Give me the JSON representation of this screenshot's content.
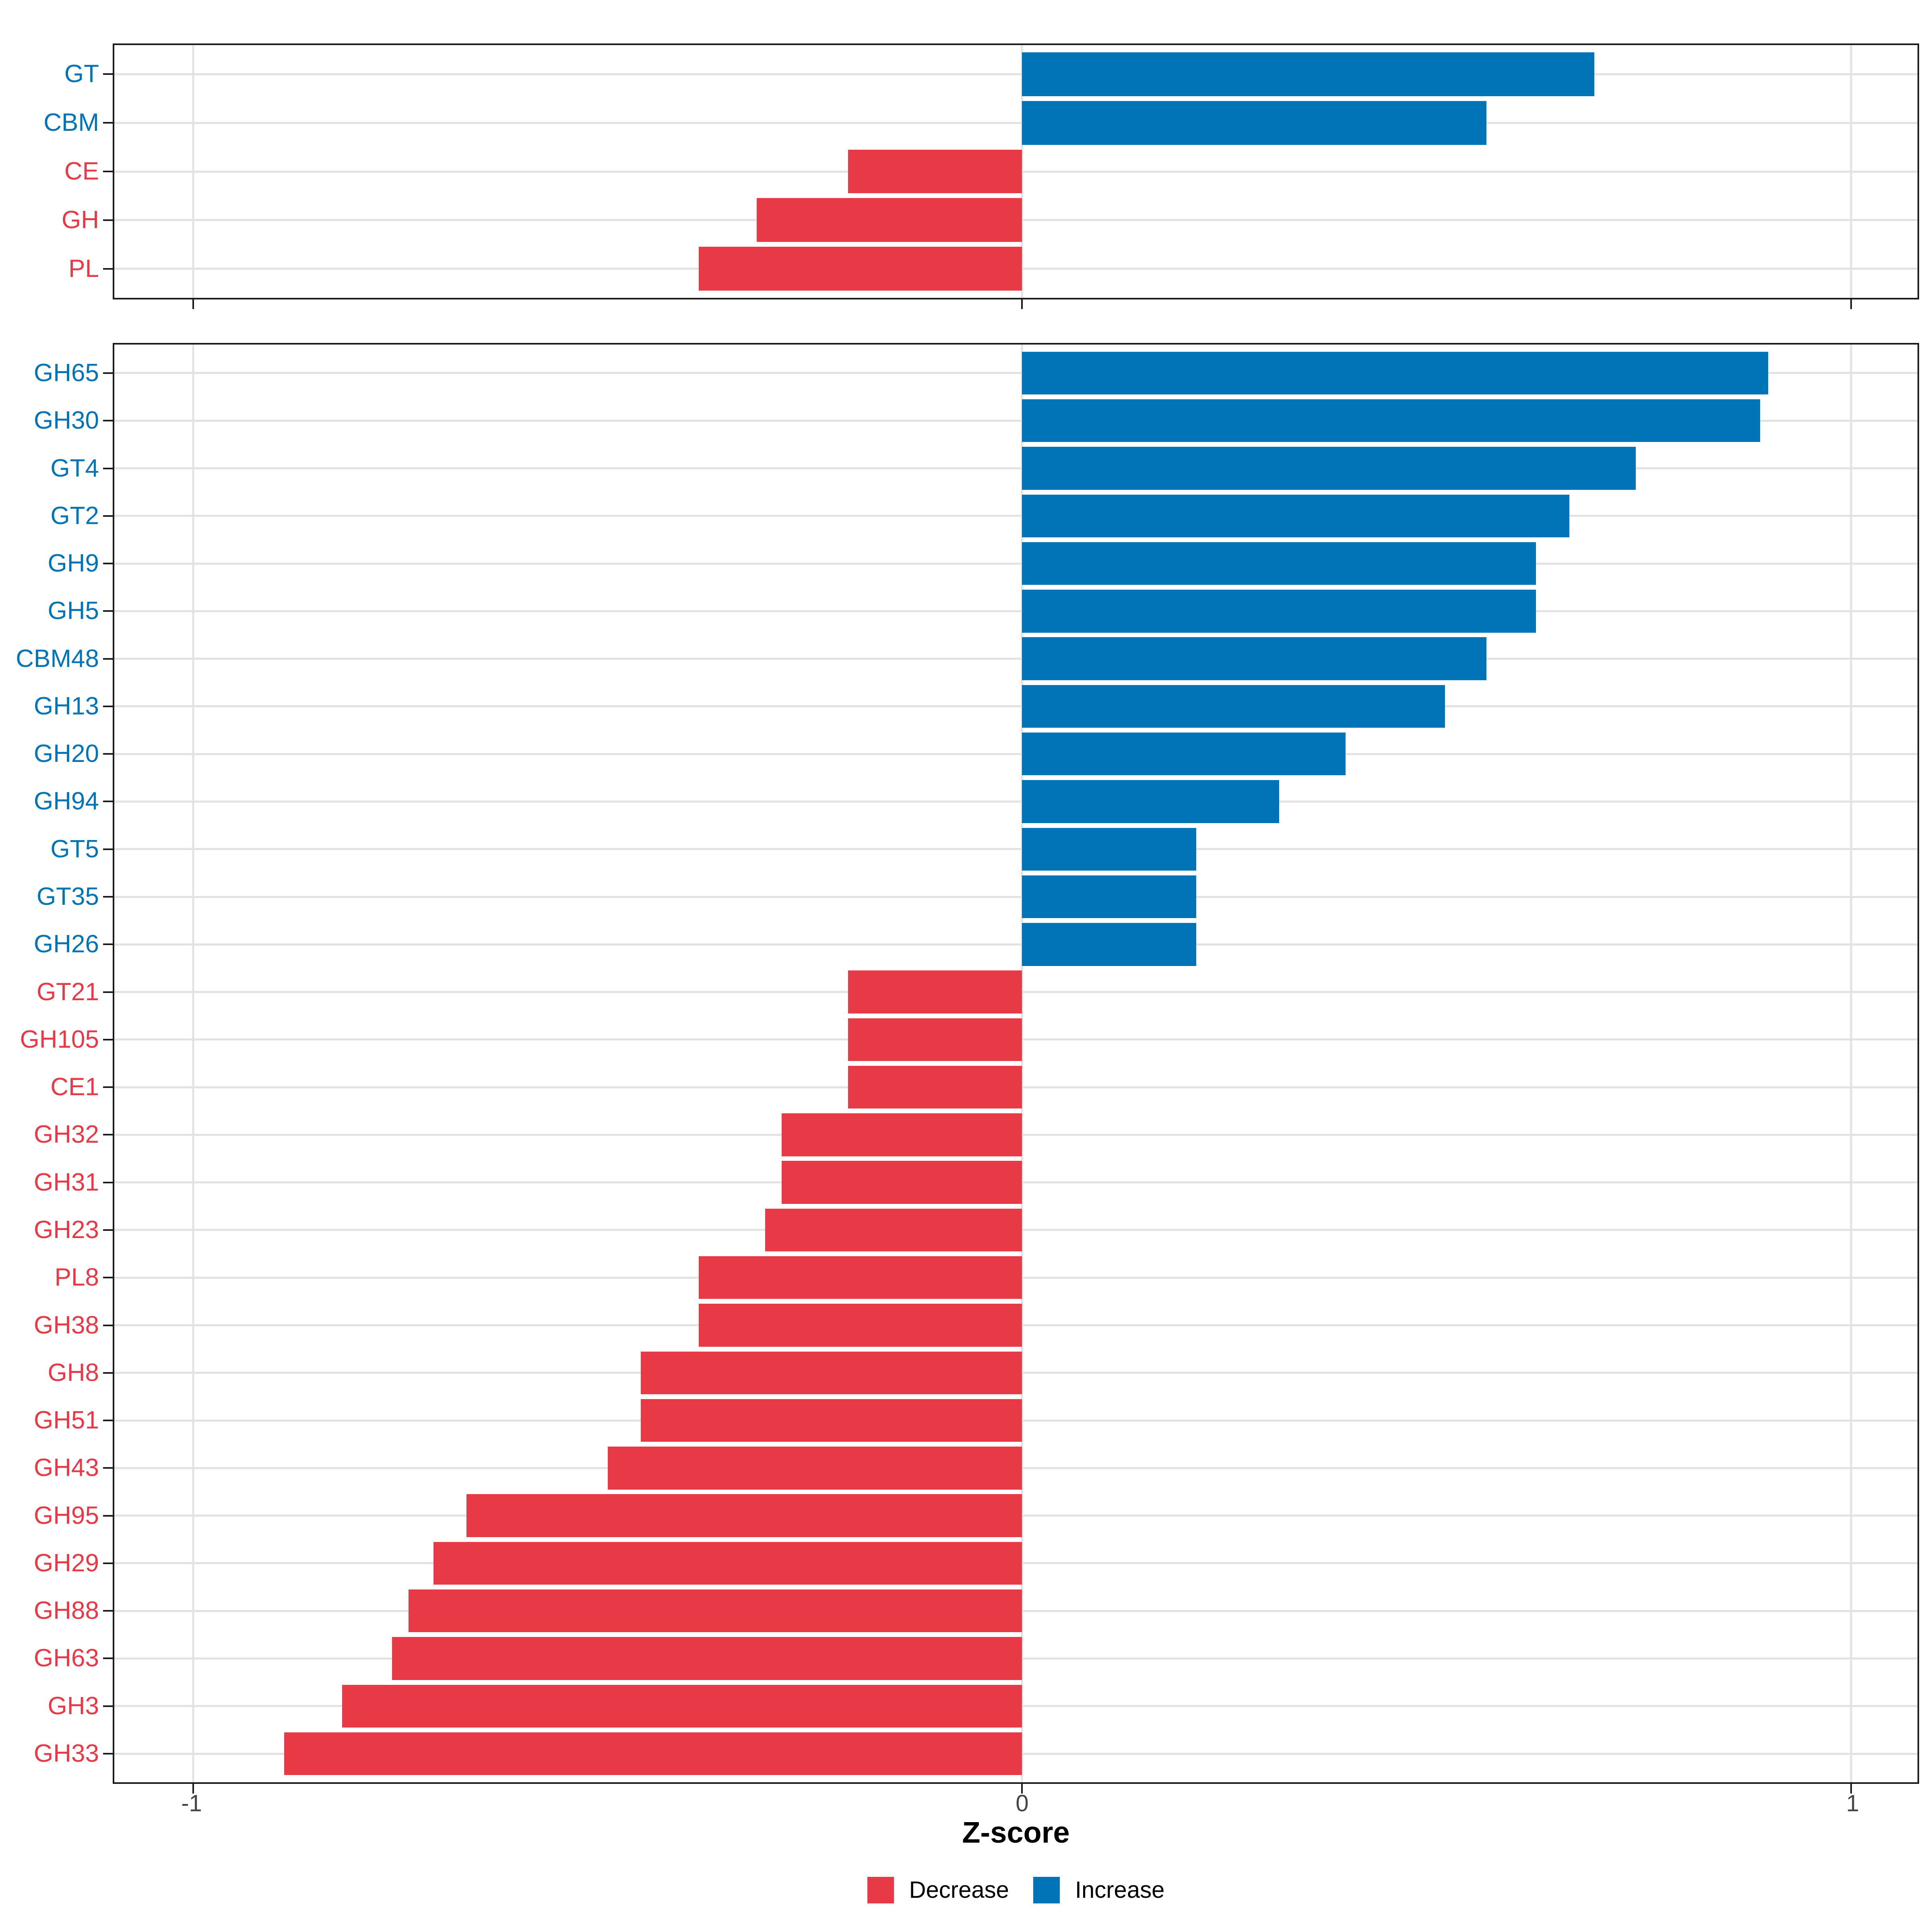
{
  "figure_name": "CAZyme Z-score horizontal bar chart, two panels",
  "chart_data": [
    {
      "type": "bar",
      "orientation": "horizontal",
      "panel": "enzyme-classes",
      "categories": [
        "GT",
        "CBM",
        "CE",
        "GH",
        "PL"
      ],
      "values": [
        0.69,
        0.56,
        -0.21,
        -0.32,
        -0.39
      ],
      "bar_width_fraction": 0.9,
      "grid": true,
      "legend_position": "none"
    },
    {
      "type": "bar",
      "orientation": "horizontal",
      "panel": "cazyme-families",
      "categories": [
        "GH65",
        "GH30",
        "GT4",
        "GT2",
        "GH9",
        "GH5",
        "CBM48",
        "GH13",
        "GH20",
        "GH94",
        "GT5",
        "GT35",
        "GH26",
        "GT21",
        "GH105",
        "CE1",
        "GH32",
        "GH31",
        "GH23",
        "PL8",
        "GH38",
        "GH8",
        "GH51",
        "GH43",
        "GH95",
        "GH29",
        "GH88",
        "GH63",
        "GH3",
        "GH33"
      ],
      "values": [
        0.9,
        0.89,
        0.74,
        0.66,
        0.62,
        0.62,
        0.56,
        0.51,
        0.39,
        0.31,
        0.21,
        0.21,
        0.21,
        -0.21,
        -0.21,
        -0.21,
        -0.29,
        -0.29,
        -0.31,
        -0.39,
        -0.39,
        -0.46,
        -0.46,
        -0.5,
        -0.67,
        -0.71,
        -0.74,
        -0.76,
        -0.82,
        -0.89
      ],
      "bar_width_fraction": 0.9,
      "grid": true,
      "legend_position": "bottom"
    }
  ],
  "axis": {
    "label": "Z-score",
    "ticks": [
      "-1",
      "0",
      "1"
    ],
    "tick_values": [
      -1,
      0,
      1
    ],
    "xlim": [
      -1.095,
      1.08
    ]
  },
  "legend": {
    "items": [
      {
        "label": "Decrease",
        "color": "#E73946"
      },
      {
        "label": "Increase",
        "color": "#0074B6"
      }
    ]
  },
  "colors": {
    "increase": "#0074B6",
    "decrease": "#E73946",
    "gridline": "#E2E2E2",
    "panel_border": "#1A1A1A",
    "tick_label": "#454545",
    "axis_title": "#000000",
    "background": "#FFFFFF"
  }
}
